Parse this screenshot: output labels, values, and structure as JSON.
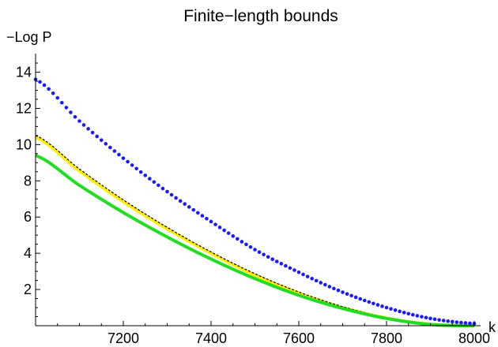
{
  "chart_data": {
    "type": "line",
    "title": "Finite−length bounds",
    "xlabel": "k",
    "ylabel": "−Log P",
    "xlim": [
      7000,
      8000
    ],
    "ylim": [
      0,
      14.5
    ],
    "x_ticks": [
      7200,
      7400,
      7600,
      7800,
      8000
    ],
    "y_ticks": [
      2,
      4,
      6,
      8,
      10,
      12,
      14
    ],
    "x_tick_labels": [
      "7200",
      "7400",
      "7600",
      "7800",
      "8000"
    ],
    "y_tick_labels": [
      "2",
      "4",
      "6",
      "8",
      "10",
      "12",
      "14"
    ],
    "grid": false,
    "legend": "none",
    "series": [
      {
        "style": "dots",
        "color": "#1a1aff",
        "x": [
          7000,
          7100,
          7200,
          7300,
          7400,
          7500,
          7600,
          7700,
          7800,
          7900,
          8000
        ],
        "y": [
          13.6,
          11.3,
          9.25,
          7.4,
          5.75,
          4.2,
          2.95,
          1.85,
          1.0,
          0.4,
          0.12
        ]
      },
      {
        "style": "thick-line",
        "color": "#ffee00",
        "x": [
          7000,
          7100,
          7200,
          7300,
          7400,
          7500,
          7600,
          7700,
          7800,
          7900,
          8000
        ],
        "y": [
          10.4,
          8.55,
          6.85,
          5.35,
          4.0,
          2.8,
          1.8,
          1.0,
          0.42,
          0.08,
          0.0
        ]
      },
      {
        "style": "dashed",
        "color": "#000000",
        "x": [
          7000,
          7100,
          7200,
          7300,
          7400,
          7500,
          7600,
          7700,
          7800,
          7900,
          8000
        ],
        "y": [
          10.5,
          8.65,
          6.95,
          5.43,
          4.07,
          2.87,
          1.86,
          1.05,
          0.45,
          0.1,
          0.0
        ]
      },
      {
        "style": "thick-line",
        "color": "#22dd22",
        "x": [
          7000,
          7100,
          7200,
          7300,
          7400,
          7500,
          7600,
          7700,
          7800,
          7900,
          8000
        ],
        "y": [
          9.4,
          7.75,
          6.25,
          4.9,
          3.68,
          2.6,
          1.68,
          0.95,
          0.4,
          0.07,
          0.0
        ]
      }
    ]
  },
  "colors": {
    "axis": "#000000",
    "background": "#ffffff"
  }
}
